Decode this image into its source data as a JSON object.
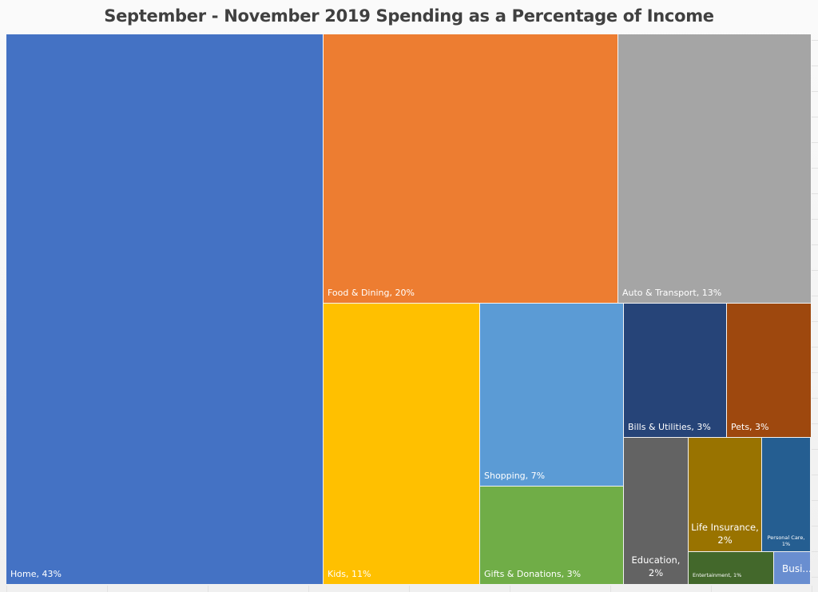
{
  "chart_data": {
    "type": "treemap",
    "title": "September - November 2019 Spending as a Percentage of Income",
    "unit": "%",
    "items": [
      {
        "label": "Home",
        "value": 43,
        "display": "Home, 43%",
        "color": "#4472C4"
      },
      {
        "label": "Food & Dining",
        "value": 20,
        "display": "Food & Dining, 20%",
        "color": "#ED7D31"
      },
      {
        "label": "Auto & Transport",
        "value": 13,
        "display": "Auto & Transport, 13%",
        "color": "#A5A5A5"
      },
      {
        "label": "Kids",
        "value": 11,
        "display": "Kids, 11%",
        "color": "#FFC000"
      },
      {
        "label": "Shopping",
        "value": 7,
        "display": "Shopping, 7%",
        "color": "#5B9BD5"
      },
      {
        "label": "Gifts & Donations",
        "value": 3,
        "display": "Gifts & Donations, 3%",
        "color": "#70AD47"
      },
      {
        "label": "Bills & Utilities",
        "value": 3,
        "display": "Bills & Utilities, 3%",
        "color": "#264478"
      },
      {
        "label": "Pets",
        "value": 3,
        "display": "Pets, 3%",
        "color": "#9E480E"
      },
      {
        "label": "Education",
        "value": 2,
        "display": "Education, 2%",
        "color": "#636363"
      },
      {
        "label": "Life Insurance",
        "value": 2,
        "display": "Life Insurance, 2%",
        "color": "#997300"
      },
      {
        "label": "Personal Care",
        "value": 1,
        "display": "Personal Care, 1%",
        "color": "#255E91"
      },
      {
        "label": "Entertainment",
        "value": 1,
        "display": "Entertainment, 1%",
        "color": "#43682B"
      },
      {
        "label": "Busi...",
        "value": null,
        "display": "Busi...",
        "color": "#698ED0"
      }
    ]
  }
}
